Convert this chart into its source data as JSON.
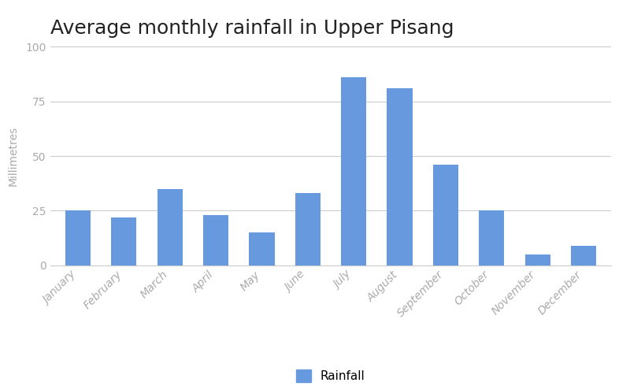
{
  "title": "Average monthly rainfall in Upper Pisang",
  "ylabel": "Millimetres",
  "months": [
    "January",
    "February",
    "March",
    "April",
    "May",
    "June",
    "July",
    "August",
    "September",
    "October",
    "November",
    "December"
  ],
  "values": [
    25,
    22,
    35,
    23,
    15,
    33,
    86,
    81,
    46,
    25,
    5,
    9
  ],
  "bar_color": "#6699dd",
  "ylim": [
    0,
    100
  ],
  "yticks": [
    0,
    25,
    50,
    75,
    100
  ],
  "legend_label": "Rainfall",
  "title_fontsize": 18,
  "ylabel_fontsize": 10,
  "tick_fontsize": 10,
  "legend_fontsize": 11,
  "background_color": "#ffffff",
  "grid_color": "#cccccc",
  "tick_color": "#aaaaaa",
  "title_color": "#212121"
}
